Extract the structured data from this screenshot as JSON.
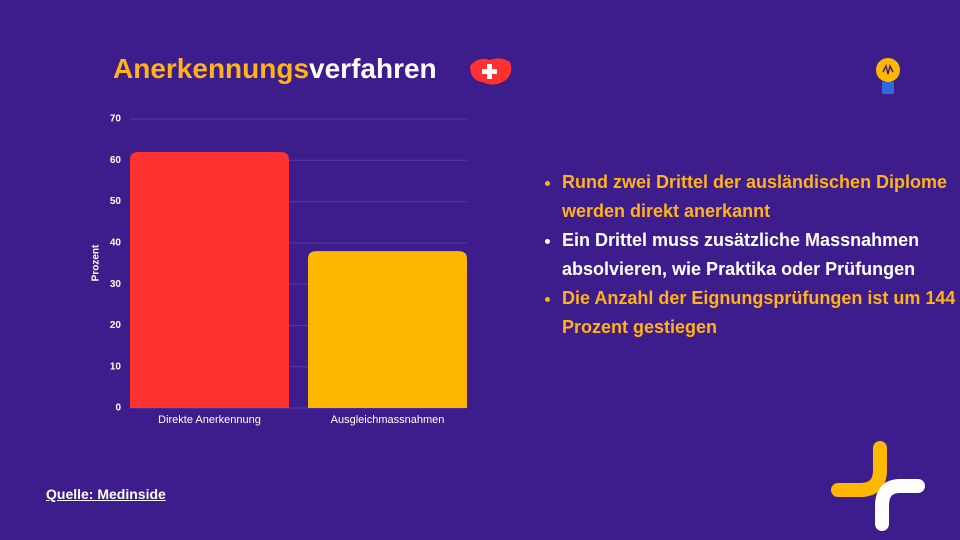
{
  "header": {
    "title_highlight": "Anerkennungs",
    "title_rest": "verfahren"
  },
  "chart_data": {
    "type": "bar",
    "y_label": "Prozent",
    "categories": [
      "Direkte Anerkennung",
      "Ausgleichmassnahmen"
    ],
    "values": [
      62,
      38
    ],
    "colors": [
      "#ff3131",
      "#ffb800"
    ],
    "ylim": [
      0,
      70
    ],
    "yticks": [
      0,
      10,
      20,
      30,
      40,
      50,
      60,
      70
    ],
    "grid": true
  },
  "bullets": [
    {
      "text": "Rund zwei Drittel der ausländischen Diplome werden direkt anerkannt",
      "color": "#ffb21a"
    },
    {
      "text": "Ein Drittel muss zusätzliche Massnahmen absolvieren, wie Praktika oder Prüfungen",
      "color": "#ffffff"
    },
    {
      "text": "Die Anzahl der Eignungsprüfungen ist um 144 Prozent gestiegen",
      "color": "#ffb21a"
    }
  ],
  "source": "Quelle: Medinside"
}
